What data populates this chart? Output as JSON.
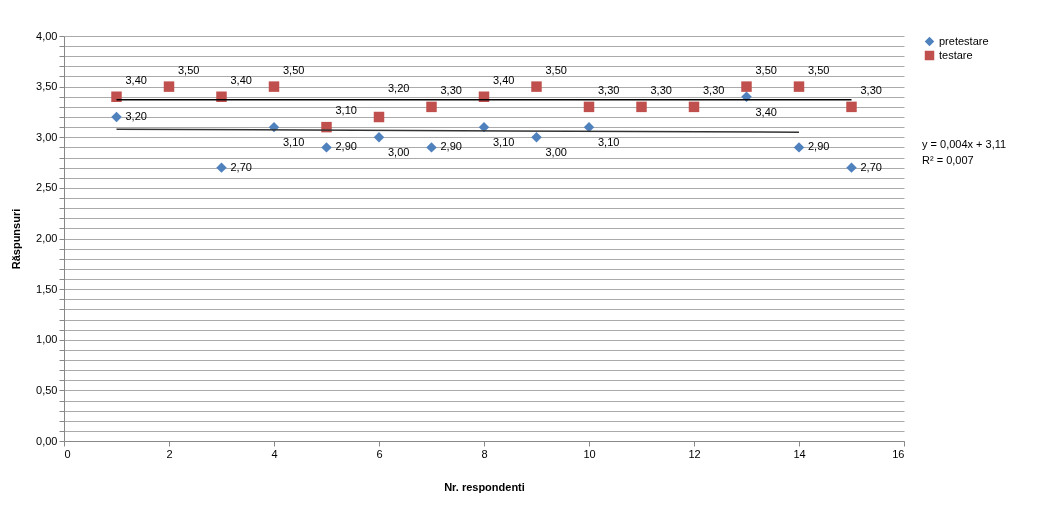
{
  "chart_data": {
    "type": "scatter",
    "xlabel": "Nr. respondenti",
    "ylabel": "Răspunsuri",
    "xlim": [
      0,
      16
    ],
    "xticks": [
      0,
      2,
      4,
      6,
      8,
      10,
      12,
      14,
      16
    ],
    "ylim": [
      0,
      4
    ],
    "yticks": [
      {
        "value": 0,
        "label": "0,00"
      },
      {
        "value": 0.1,
        "label": null
      },
      {
        "value": 0.2,
        "label": null
      },
      {
        "value": 0.3,
        "label": null
      },
      {
        "value": 0.4,
        "label": null
      },
      {
        "value": 0.5,
        "label": "0,50"
      },
      {
        "value": 0.6,
        "label": null
      },
      {
        "value": 0.7,
        "label": null
      },
      {
        "value": 0.8,
        "label": null
      },
      {
        "value": 0.9,
        "label": null
      },
      {
        "value": 1,
        "label": "1,00"
      },
      {
        "value": 1.1,
        "label": null
      },
      {
        "value": 1.2,
        "label": null
      },
      {
        "value": 1.3,
        "label": null
      },
      {
        "value": 1.4,
        "label": null
      },
      {
        "value": 1.5,
        "label": "1,50"
      },
      {
        "value": 1.6,
        "label": null
      },
      {
        "value": 1.7,
        "label": null
      },
      {
        "value": 1.8,
        "label": null
      },
      {
        "value": 1.9,
        "label": null
      },
      {
        "value": 2,
        "label": "2,00"
      },
      {
        "value": 2.1,
        "label": null
      },
      {
        "value": 2.2,
        "label": null
      },
      {
        "value": 2.3,
        "label": null
      },
      {
        "value": 2.4,
        "label": null
      },
      {
        "value": 2.5,
        "label": "2,50"
      },
      {
        "value": 2.6,
        "label": null
      },
      {
        "value": 2.7,
        "label": null
      },
      {
        "value": 2.8,
        "label": null
      },
      {
        "value": 2.9,
        "label": null
      },
      {
        "value": 3,
        "label": "3,00"
      },
      {
        "value": 3.1,
        "label": null
      },
      {
        "value": 3.2,
        "label": null
      },
      {
        "value": 3.3,
        "label": null
      },
      {
        "value": 3.4,
        "label": null
      },
      {
        "value": 3.5,
        "label": "3,50"
      },
      {
        "value": 3.6,
        "label": null
      },
      {
        "value": 3.7,
        "label": null
      },
      {
        "value": 3.8,
        "label": null
      },
      {
        "value": 3.9,
        "label": null
      },
      {
        "value": 4,
        "label": "4,00"
      }
    ],
    "grid": "y",
    "legend": "right",
    "series": [
      {
        "name": "pretestare",
        "color": "#4f81bd",
        "marker": "diamond",
        "x": [
          1,
          3,
          4,
          5,
          6,
          7,
          8,
          9,
          10,
          13,
          14,
          15
        ],
        "values": [
          3.2,
          2.7,
          3.1,
          2.9,
          3.0,
          2.9,
          3.1,
          3.0,
          3.1,
          3.4,
          2.9,
          2.7
        ],
        "value_labels": [
          "3,20",
          "2,70",
          "3,10",
          "2,90",
          "3,00",
          "2,90",
          "3,10",
          "3,00",
          "3,10",
          "3,40",
          "2,90",
          "2,70"
        ]
      },
      {
        "name": "testare",
        "color": "#c0504d",
        "marker": "square",
        "x": [
          1,
          2,
          3,
          4,
          5,
          6,
          7,
          8,
          9,
          10,
          11,
          12,
          13,
          14,
          15
        ],
        "values": [
          3.4,
          3.5,
          3.4,
          3.5,
          3.1,
          3.2,
          3.3,
          3.4,
          3.5,
          3.3,
          3.3,
          3.3,
          3.5,
          3.5,
          3.3
        ],
        "value_labels": [
          "3,40",
          "3,50",
          "3,40",
          "3,50",
          "3,10",
          "3,20",
          "3,30",
          "3,40",
          "3,50",
          "3,30",
          "3,30",
          "3,30",
          "3,50",
          "3,50",
          "3,30"
        ]
      },
      {
        "type": "line",
        "color": "#000000",
        "marker": "none",
        "x": [
          1,
          15
        ],
        "values": [
          3.37,
          3.37
        ]
      },
      {
        "type": "line",
        "color": "#333333",
        "marker": "none",
        "x": [
          1,
          14
        ],
        "values": [
          3.08,
          3.05
        ]
      }
    ],
    "annotations": [
      "y = 0,004x + 3,11",
      "R² = 0,007"
    ]
  }
}
